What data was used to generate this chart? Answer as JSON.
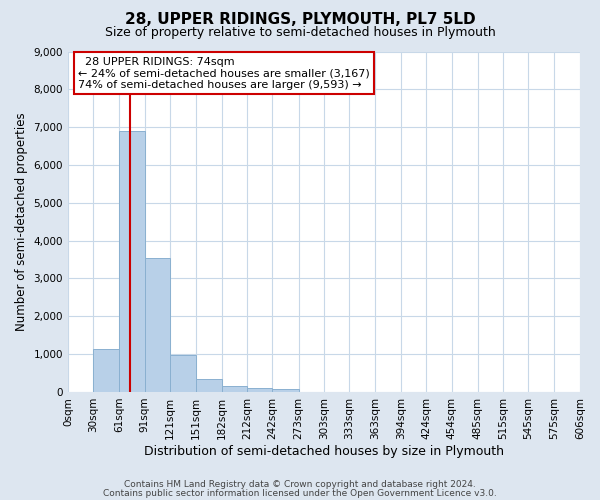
{
  "title": "28, UPPER RIDINGS, PLYMOUTH, PL7 5LD",
  "subtitle": "Size of property relative to semi-detached houses in Plymouth",
  "xlabel": "Distribution of semi-detached houses by size in Plymouth",
  "ylabel": "Number of semi-detached properties",
  "bar_edges": [
    0,
    30,
    61,
    91,
    121,
    151,
    182,
    212,
    242,
    273,
    303,
    333,
    363,
    394,
    424,
    454,
    485,
    515,
    545,
    575,
    606
  ],
  "bar_values": [
    0,
    1130,
    6890,
    3550,
    980,
    340,
    150,
    110,
    75,
    0,
    0,
    0,
    0,
    0,
    0,
    0,
    0,
    0,
    0,
    0
  ],
  "bar_color": "#b8d0e8",
  "bar_edgecolor": "#8ab0d0",
  "property_line_x": 74,
  "annotation_title": "28 UPPER RIDINGS: 74sqm",
  "annotation_line1": "← 24% of semi-detached houses are smaller (3,167)",
  "annotation_line2": "74% of semi-detached houses are larger (9,593) →",
  "annotation_box_facecolor": "#ffffff",
  "annotation_box_edgecolor": "#cc0000",
  "vline_color": "#cc0000",
  "ylim": [
    0,
    9000
  ],
  "yticks": [
    0,
    1000,
    2000,
    3000,
    4000,
    5000,
    6000,
    7000,
    8000,
    9000
  ],
  "xtick_labels": [
    "0sqm",
    "30sqm",
    "61sqm",
    "91sqm",
    "121sqm",
    "151sqm",
    "182sqm",
    "212sqm",
    "242sqm",
    "273sqm",
    "303sqm",
    "333sqm",
    "363sqm",
    "394sqm",
    "424sqm",
    "454sqm",
    "485sqm",
    "515sqm",
    "545sqm",
    "575sqm",
    "606sqm"
  ],
  "outer_bg_color": "#dde6f0",
  "plot_bg_color": "#ffffff",
  "grid_color": "#c8d8e8",
  "footer_line1": "Contains HM Land Registry data © Crown copyright and database right 2024.",
  "footer_line2": "Contains public sector information licensed under the Open Government Licence v3.0.",
  "title_fontsize": 11,
  "subtitle_fontsize": 9,
  "xlabel_fontsize": 9,
  "ylabel_fontsize": 8.5,
  "tick_fontsize": 7.5,
  "footer_fontsize": 6.5,
  "annotation_fontsize": 8,
  "annotation_title_fontsize": 8.5
}
